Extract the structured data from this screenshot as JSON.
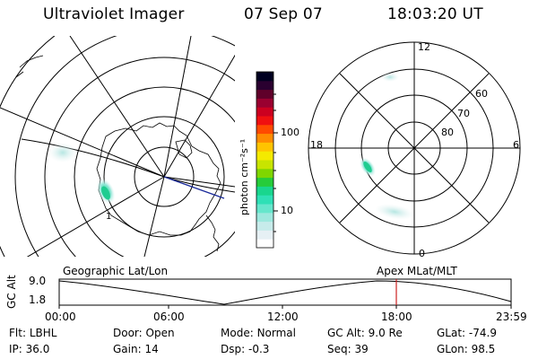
{
  "header": {
    "instrument": "Ultraviolet Imager",
    "date": "07 Sep 07",
    "time": "18:03:20 UT"
  },
  "colorbar": {
    "unit_label": "photon cm⁻²s⁻¹",
    "ticks": [
      "100",
      "10"
    ],
    "colors": [
      "#ffffff",
      "#e6f0f4",
      "#c7ebea",
      "#9ee8de",
      "#66e6cc",
      "#2fe0b6",
      "#19d68e",
      "#26cc3a",
      "#7fd600",
      "#c8e400",
      "#f4ea00",
      "#ffc400",
      "#ff8c00",
      "#ff4a00",
      "#f01010",
      "#cc0020",
      "#9a0030",
      "#60002a",
      "#2a0030",
      "#000020"
    ]
  },
  "polar_plot": {
    "lat_labels": [
      "60",
      "70",
      "80"
    ],
    "mlt_labels": {
      "top": "12",
      "left": "18",
      "right": "6",
      "bottom": "0"
    }
  },
  "timeline": {
    "left_label": "Geographic Lat/Lon",
    "right_label": "Apex MLat/MLT",
    "y_axis_label": "GC Alt",
    "y_ticks": [
      "9.0",
      "1.8"
    ],
    "x_ticks": [
      "00:00",
      "06:00",
      "12:00",
      "18:00",
      "23:59"
    ]
  },
  "status": {
    "row1": [
      {
        "label": "Flt:",
        "value": "LBHL"
      },
      {
        "label": "Door:",
        "value": "Open"
      },
      {
        "label": "Mode:",
        "value": "Normal"
      },
      {
        "label": "GC Alt:",
        "value": "9.0 Re"
      },
      {
        "label": "GLat:",
        "value": "-74.9"
      }
    ],
    "row2": [
      {
        "label": "IP:",
        "value": "36.0"
      },
      {
        "label": "Gain:",
        "value": "14"
      },
      {
        "label": "Dsp:",
        "value": "-0.3"
      },
      {
        "label": "Seq:",
        "value": "39"
      },
      {
        "label": "GLon:",
        "value": "98.5"
      }
    ]
  }
}
